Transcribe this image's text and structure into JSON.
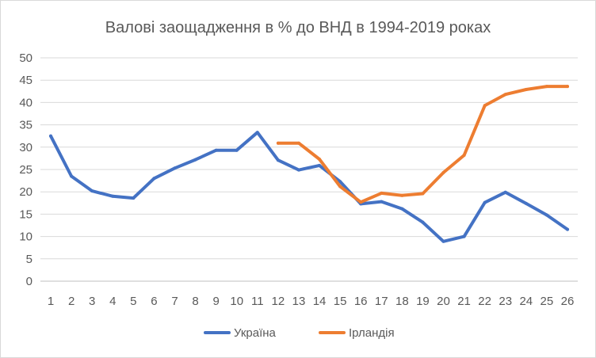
{
  "chart_data": {
    "type": "line",
    "title": "Валові заощадження в % до ВНД в 1994-2019 роках",
    "xlabel": "",
    "ylabel": "",
    "categories": [
      "1",
      "2",
      "3",
      "4",
      "5",
      "6",
      "7",
      "8",
      "9",
      "10",
      "11",
      "12",
      "13",
      "14",
      "15",
      "16",
      "17",
      "18",
      "19",
      "20",
      "21",
      "22",
      "23",
      "24",
      "25",
      "26"
    ],
    "ylim": [
      0,
      50
    ],
    "yticks": [
      "0",
      "5",
      "10",
      "15",
      "20",
      "25",
      "30",
      "35",
      "40",
      "45",
      "50"
    ],
    "grid": true,
    "legend": "bottom",
    "series": [
      {
        "name": "Україна",
        "color": "#4472c4",
        "values": [
          32.5,
          23.5,
          20.2,
          19.0,
          18.6,
          23.0,
          25.3,
          27.2,
          29.3,
          29.3,
          33.3,
          27.1,
          24.9,
          25.9,
          22.3,
          17.3,
          17.8,
          16.2,
          13.2,
          8.9,
          10.0,
          17.6,
          19.9,
          17.4,
          14.8,
          11.6
        ]
      },
      {
        "name": "Ірландія",
        "color": "#ed7d31",
        "values": [
          null,
          null,
          null,
          null,
          null,
          null,
          null,
          null,
          null,
          null,
          null,
          30.9,
          30.9,
          27.3,
          21.2,
          17.7,
          19.7,
          19.2,
          19.6,
          24.3,
          28.2,
          39.3,
          41.8,
          42.9,
          43.6,
          43.6
        ]
      }
    ]
  }
}
